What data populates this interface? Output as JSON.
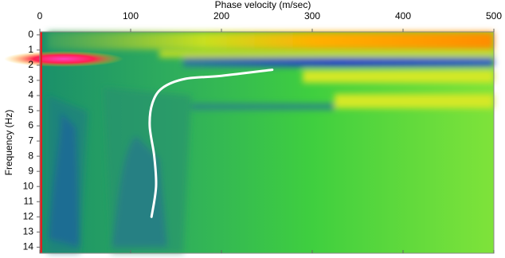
{
  "chart_data": {
    "type": "line",
    "xlabel": "Phase velocity (m/sec)",
    "ylabel": "Frequency (Hz)",
    "xlim": [
      0,
      500
    ],
    "xticks": [
      0,
      100,
      200,
      300,
      400,
      500
    ],
    "ylim": [
      -0.2,
      14.4
    ],
    "yticks": [
      0,
      1,
      2,
      3,
      4,
      5,
      6,
      7,
      8,
      9,
      10,
      11,
      12,
      13,
      14
    ],
    "series": [
      {
        "color": "#ffffff",
        "x": [
          123,
          128,
          126,
          121,
          124,
          135,
          160,
          200,
          256
        ],
        "values": [
          12,
          10,
          8,
          6,
          4.5,
          3.5,
          2.9,
          2.7,
          2.3
        ]
      }
    ]
  }
}
